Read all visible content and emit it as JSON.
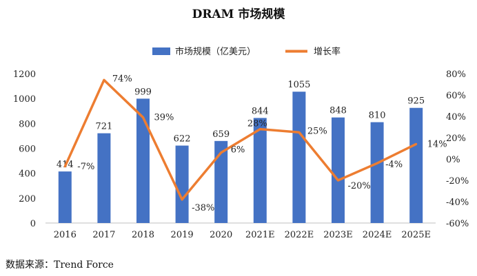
{
  "chart_data": {
    "type": "bar+line",
    "title": "DRAM 市场规模",
    "categories": [
      "2016",
      "2017",
      "2018",
      "2019",
      "2020",
      "2021E",
      "2022E",
      "2023E",
      "2024E",
      "2025E"
    ],
    "series": [
      {
        "name": "市场规模（亿美元）",
        "type": "bar",
        "axis": "left",
        "color": "#4472C4",
        "values": [
          414,
          721,
          999,
          622,
          659,
          844,
          1055,
          848,
          810,
          925
        ],
        "labels": [
          "414",
          "721",
          "999",
          "622",
          "659",
          "844",
          "1055",
          "848",
          "810",
          "925"
        ]
      },
      {
        "name": "增长率",
        "type": "line",
        "axis": "right",
        "color": "#ED7D31",
        "values": [
          -7,
          74,
          39,
          -38,
          6,
          28,
          25,
          -20,
          -4,
          14
        ],
        "labels": [
          "-7%",
          "74%",
          "39%",
          "-38%",
          "6%",
          "28%",
          "25%",
          "-20%",
          "-4%",
          "14%"
        ]
      }
    ],
    "y_left": {
      "min": 0,
      "max": 1200,
      "ticks": [
        "0",
        "200",
        "400",
        "600",
        "800",
        "1000",
        "1200"
      ]
    },
    "y_right": {
      "min": -60,
      "max": 80,
      "ticks": [
        "-60%",
        "-40%",
        "-20%",
        "0%",
        "20%",
        "40%",
        "60%",
        "80%"
      ]
    },
    "legend_position": "top-center",
    "grid": false
  },
  "source_text": "数据来源：Trend Force"
}
